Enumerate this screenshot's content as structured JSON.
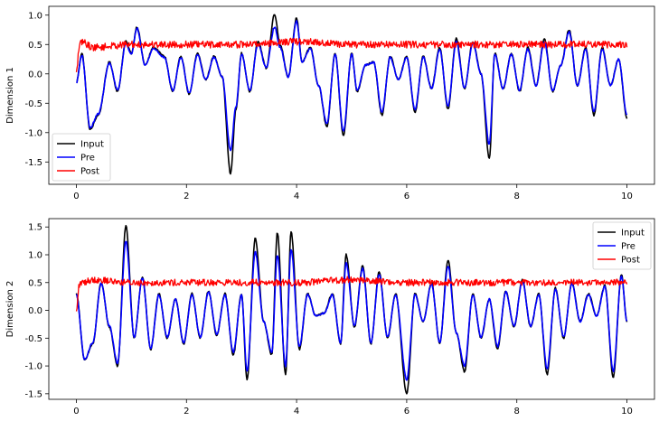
{
  "chart_data": [
    {
      "type": "line",
      "title": "",
      "xlabel": "",
      "ylabel": "Dimension 1",
      "xlim": [
        -0.5,
        10.5
      ],
      "ylim": [
        -1.88,
        1.15
      ],
      "xticks": [
        "0",
        "2",
        "4",
        "6",
        "8",
        "10"
      ],
      "yticks": [
        "1.0",
        "0.5",
        "0.0",
        "-0.5",
        "-1.0",
        "-1.5"
      ],
      "grid": false,
      "legend_position": "lower-left",
      "series": [
        {
          "name": "Input",
          "color": "#000000",
          "x": [
            0,
            0.1,
            0.25,
            0.4,
            0.6,
            0.75,
            0.9,
            1.0,
            1.1,
            1.25,
            1.4,
            1.6,
            1.75,
            1.9,
            2.05,
            2.2,
            2.35,
            2.5,
            2.65,
            2.8,
            2.9,
            3.0,
            3.15,
            3.3,
            3.45,
            3.6,
            3.7,
            3.85,
            4.0,
            4.1,
            4.25,
            4.4,
            4.55,
            4.7,
            4.85,
            5.0,
            5.1,
            5.25,
            5.4,
            5.55,
            5.7,
            5.85,
            6.0,
            6.15,
            6.3,
            6.45,
            6.6,
            6.75,
            6.9,
            7.05,
            7.2,
            7.35,
            7.5,
            7.6,
            7.75,
            7.9,
            8.05,
            8.2,
            8.35,
            8.5,
            8.65,
            8.8,
            8.95,
            9.1,
            9.25,
            9.4,
            9.55,
            9.7,
            9.85,
            10.0
          ],
          "y": [
            -0.15,
            0.35,
            -0.95,
            -0.7,
            0.2,
            -0.3,
            0.55,
            0.35,
            0.8,
            0.15,
            0.45,
            0.3,
            -0.3,
            0.3,
            -0.35,
            0.35,
            -0.1,
            0.3,
            -0.05,
            -1.7,
            -0.6,
            0.35,
            -0.3,
            0.55,
            0.1,
            1.02,
            0.5,
            -0.05,
            0.95,
            0.2,
            0.45,
            -0.2,
            -0.9,
            0.35,
            -1.05,
            0.35,
            -0.3,
            0.15,
            0.2,
            -0.7,
            0.3,
            -0.1,
            0.3,
            -0.65,
            0.3,
            -0.25,
            0.45,
            -0.6,
            0.6,
            -0.25,
            0.55,
            0.0,
            -1.45,
            0.35,
            -0.25,
            0.35,
            -0.3,
            0.45,
            -0.2,
            0.6,
            -0.3,
            0.15,
            0.75,
            -0.2,
            0.45,
            -0.7,
            0.45,
            -0.2,
            0.25,
            -0.75
          ]
        },
        {
          "name": "Pre",
          "color": "#0000ff",
          "x": [
            0,
            0.1,
            0.25,
            0.4,
            0.6,
            0.75,
            0.9,
            1.0,
            1.1,
            1.25,
            1.4,
            1.6,
            1.75,
            1.9,
            2.05,
            2.2,
            2.35,
            2.5,
            2.65,
            2.8,
            2.9,
            3.0,
            3.15,
            3.3,
            3.45,
            3.6,
            3.7,
            3.85,
            4.0,
            4.1,
            4.25,
            4.4,
            4.55,
            4.7,
            4.85,
            5.0,
            5.1,
            5.25,
            5.4,
            5.55,
            5.7,
            5.85,
            6.0,
            6.15,
            6.3,
            6.45,
            6.6,
            6.75,
            6.9,
            7.05,
            7.2,
            7.35,
            7.5,
            7.6,
            7.75,
            7.9,
            8.05,
            8.2,
            8.35,
            8.5,
            8.65,
            8.8,
            8.95,
            9.1,
            9.25,
            9.4,
            9.55,
            9.7,
            9.85,
            10.0
          ],
          "y": [
            -0.15,
            0.32,
            -0.92,
            -0.68,
            0.18,
            -0.28,
            0.52,
            0.33,
            0.78,
            0.15,
            0.43,
            0.28,
            -0.28,
            0.28,
            -0.33,
            0.33,
            -0.1,
            0.28,
            -0.05,
            -1.3,
            -0.55,
            0.33,
            -0.28,
            0.5,
            0.1,
            0.8,
            0.45,
            -0.05,
            0.9,
            0.2,
            0.43,
            -0.2,
            -0.85,
            0.33,
            -0.98,
            0.33,
            -0.28,
            0.15,
            0.2,
            -0.65,
            0.28,
            -0.1,
            0.28,
            -0.6,
            0.28,
            -0.25,
            0.42,
            -0.55,
            0.55,
            -0.25,
            0.52,
            0.0,
            -1.2,
            0.33,
            -0.25,
            0.33,
            -0.28,
            0.42,
            -0.2,
            0.55,
            -0.28,
            0.15,
            0.72,
            -0.2,
            0.42,
            -0.65,
            0.42,
            -0.2,
            0.25,
            -0.7
          ]
        },
        {
          "name": "Post",
          "color": "#ff0000",
          "x": [
            0,
            0.05,
            0.1,
            0.3,
            1.0,
            2.0,
            3.0,
            4.0,
            5.0,
            6.0,
            7.0,
            8.0,
            9.0,
            10.0
          ],
          "y": [
            0.0,
            0.45,
            0.55,
            0.45,
            0.5,
            0.5,
            0.5,
            0.55,
            0.5,
            0.5,
            0.5,
            0.5,
            0.5,
            0.5
          ]
        }
      ]
    },
    {
      "type": "line",
      "title": "",
      "xlabel": "",
      "ylabel": "Dimension 2",
      "xlim": [
        -0.5,
        10.5
      ],
      "ylim": [
        -1.6,
        1.65
      ],
      "xticks": [
        "0",
        "2",
        "4",
        "6",
        "8",
        "10"
      ],
      "yticks": [
        "1.5",
        "1.0",
        "0.5",
        "0.0",
        "-0.5",
        "-1.0",
        "-1.5"
      ],
      "grid": false,
      "legend_position": "upper-right",
      "series": [
        {
          "name": "Input",
          "color": "#000000",
          "x": [
            0,
            0.15,
            0.3,
            0.45,
            0.6,
            0.75,
            0.9,
            1.05,
            1.2,
            1.35,
            1.5,
            1.65,
            1.8,
            1.95,
            2.1,
            2.25,
            2.4,
            2.55,
            2.7,
            2.85,
            3.0,
            3.1,
            3.25,
            3.4,
            3.55,
            3.65,
            3.8,
            3.9,
            4.05,
            4.2,
            4.35,
            4.5,
            4.65,
            4.8,
            4.9,
            5.05,
            5.2,
            5.35,
            5.5,
            5.65,
            5.8,
            6.0,
            6.15,
            6.3,
            6.45,
            6.6,
            6.75,
            6.9,
            7.05,
            7.2,
            7.35,
            7.5,
            7.65,
            7.8,
            7.95,
            8.1,
            8.25,
            8.4,
            8.55,
            8.7,
            8.85,
            9.0,
            9.15,
            9.3,
            9.45,
            9.6,
            9.75,
            9.9,
            10.0
          ],
          "y": [
            0.3,
            -0.9,
            -0.6,
            0.5,
            -0.3,
            -1.0,
            1.52,
            -0.5,
            0.6,
            -0.7,
            0.3,
            -0.5,
            0.2,
            -0.6,
            0.3,
            -0.5,
            0.35,
            -0.45,
            0.3,
            -0.8,
            0.3,
            -1.25,
            1.3,
            -0.2,
            -0.8,
            1.4,
            -1.15,
            1.42,
            -0.7,
            0.3,
            -0.1,
            -0.05,
            0.3,
            -0.6,
            1.0,
            -0.3,
            0.8,
            -0.6,
            0.7,
            -0.5,
            0.3,
            -1.5,
            0.3,
            -0.2,
            0.5,
            -0.6,
            0.9,
            -0.4,
            -1.1,
            0.3,
            -0.5,
            0.2,
            -0.7,
            0.35,
            -0.3,
            0.55,
            -0.3,
            0.3,
            -1.15,
            0.4,
            -0.5,
            0.5,
            -0.2,
            0.3,
            -0.1,
            0.45,
            -1.2,
            0.65,
            -0.2
          ]
        },
        {
          "name": "Pre",
          "color": "#0000ff",
          "x": [
            0,
            0.15,
            0.3,
            0.45,
            0.6,
            0.75,
            0.9,
            1.05,
            1.2,
            1.35,
            1.5,
            1.65,
            1.8,
            1.95,
            2.1,
            2.25,
            2.4,
            2.55,
            2.7,
            2.85,
            3.0,
            3.1,
            3.25,
            3.4,
            3.55,
            3.65,
            3.8,
            3.9,
            4.05,
            4.2,
            4.35,
            4.5,
            4.65,
            4.8,
            4.9,
            5.05,
            5.2,
            5.35,
            5.5,
            5.65,
            5.8,
            6.0,
            6.15,
            6.3,
            6.45,
            6.6,
            6.75,
            6.9,
            7.05,
            7.2,
            7.35,
            7.5,
            7.65,
            7.8,
            7.95,
            8.1,
            8.25,
            8.4,
            8.55,
            8.7,
            8.85,
            9.0,
            9.15,
            9.3,
            9.45,
            9.6,
            9.75,
            9.9,
            10.0
          ],
          "y": [
            0.28,
            -0.88,
            -0.58,
            0.48,
            -0.28,
            -0.95,
            1.25,
            -0.48,
            0.58,
            -0.68,
            0.28,
            -0.48,
            0.2,
            -0.58,
            0.28,
            -0.48,
            0.33,
            -0.43,
            0.28,
            -0.75,
            0.28,
            -1.1,
            1.05,
            -0.2,
            -0.75,
            1.0,
            -1.0,
            1.1,
            -0.65,
            0.28,
            -0.1,
            -0.05,
            0.28,
            -0.58,
            0.85,
            -0.28,
            0.75,
            -0.58,
            0.65,
            -0.48,
            0.28,
            -1.25,
            0.28,
            -0.2,
            0.48,
            -0.58,
            0.8,
            -0.4,
            -1.0,
            0.28,
            -0.48,
            0.2,
            -0.65,
            0.33,
            -0.28,
            0.52,
            -0.28,
            0.28,
            -1.05,
            0.38,
            -0.48,
            0.48,
            -0.2,
            0.28,
            -0.1,
            0.43,
            -1.1,
            0.62,
            -0.2
          ]
        },
        {
          "name": "Post",
          "color": "#ff0000",
          "x": [
            0,
            0.05,
            0.1,
            0.3,
            1.0,
            2.0,
            3.0,
            4.0,
            5.0,
            6.0,
            7.0,
            8.0,
            9.0,
            10.0
          ],
          "y": [
            -0.05,
            0.45,
            0.5,
            0.55,
            0.5,
            0.5,
            0.5,
            0.5,
            0.55,
            0.5,
            0.5,
            0.5,
            0.5,
            0.5
          ]
        }
      ]
    }
  ]
}
